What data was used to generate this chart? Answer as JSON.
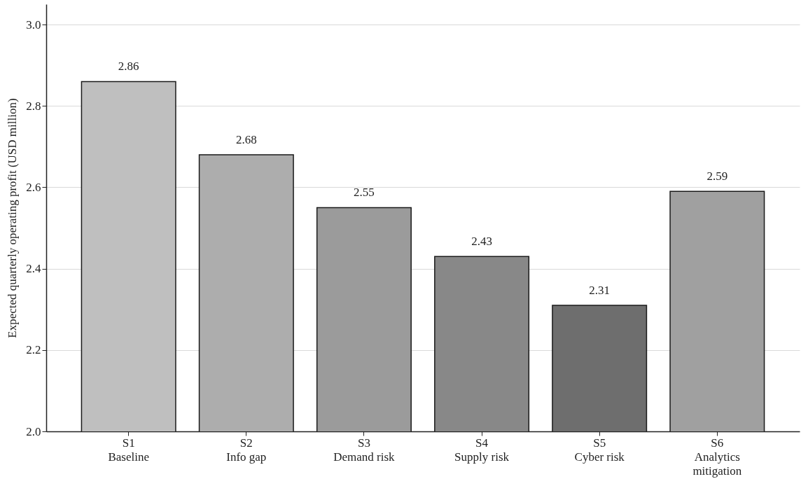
{
  "chart_data": {
    "type": "bar",
    "ylabel": "Expected quarterly operating profit (USD million)",
    "categories": [
      "S1\nBaseline",
      "S2\nInfo gap",
      "S3\nDemand risk",
      "S4\nSupply risk",
      "S5\nCyber risk",
      "S6\nAnalytics\nmitigation"
    ],
    "values": [
      2.86,
      2.68,
      2.55,
      2.43,
      2.31,
      2.59
    ],
    "colors": [
      "#bfbfbf",
      "#adadad",
      "#9b9b9b",
      "#888888",
      "#6e6e6e",
      "#a0a0a0"
    ],
    "ylim": [
      2.0,
      3.05
    ],
    "yticks": [
      {
        "value": 2,
        "label": "2.0"
      },
      2.2,
      2.4,
      2.6,
      2.8,
      {
        "value": 3,
        "label": "3.0"
      }
    ],
    "grid": "y",
    "data_labels": true
  }
}
